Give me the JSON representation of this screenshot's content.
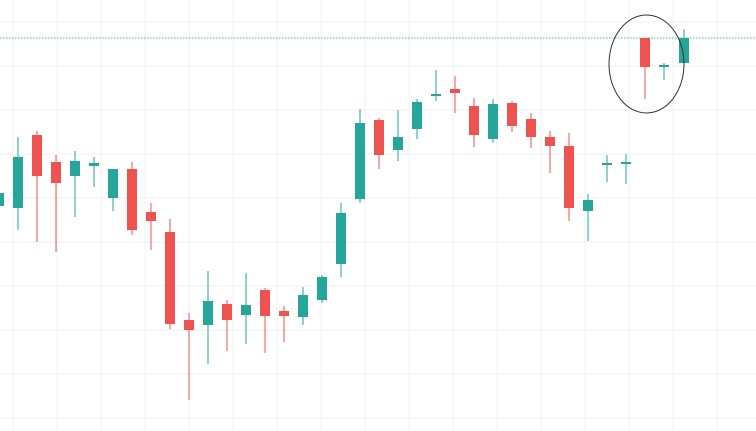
{
  "chart_data": {
    "type": "candlestick",
    "title": "",
    "xlabel": "",
    "ylabel": "",
    "grid": true,
    "ylim": [
      0,
      431
    ],
    "colors": {
      "up": "#26a69a",
      "down": "#ef5350",
      "grid": "#f0f0f3",
      "reference_line": "#26a69a",
      "annotation": "#333333"
    },
    "reference_line": {
      "value": 393
    },
    "annotation": {
      "shape": "ellipse",
      "center_x": 646.5,
      "center_y": 367,
      "rx": 37.5,
      "ry": 49
    },
    "candles": [
      {
        "x": -1,
        "o": 225,
        "h": 238,
        "l": 208,
        "c": 238
      },
      {
        "x": 18,
        "o": 223,
        "h": 294,
        "l": 201,
        "c": 274
      },
      {
        "x": 37,
        "o": 296,
        "h": 300,
        "l": 189,
        "c": 255
      },
      {
        "x": 56,
        "o": 269,
        "h": 276,
        "l": 179,
        "c": 248
      },
      {
        "x": 75,
        "o": 255,
        "h": 280,
        "l": 214,
        "c": 270
      },
      {
        "x": 94,
        "o": 265,
        "h": 274,
        "l": 244,
        "c": 268
      },
      {
        "x": 113,
        "o": 233,
        "h": 262,
        "l": 220,
        "c": 262
      },
      {
        "x": 132,
        "o": 262,
        "h": 269,
        "l": 196,
        "c": 201
      },
      {
        "x": 151,
        "o": 219,
        "h": 228,
        "l": 181,
        "c": 210
      },
      {
        "x": 170,
        "o": 199,
        "h": 212,
        "l": 102,
        "c": 107
      },
      {
        "x": 189,
        "o": 111,
        "h": 118,
        "l": 31,
        "c": 101
      },
      {
        "x": 208,
        "o": 106,
        "h": 160,
        "l": 67,
        "c": 130
      },
      {
        "x": 227,
        "o": 127,
        "h": 131,
        "l": 80,
        "c": 111
      },
      {
        "x": 246,
        "o": 116,
        "h": 158,
        "l": 87,
        "c": 126
      },
      {
        "x": 265,
        "o": 141,
        "h": 143,
        "l": 78,
        "c": 115
      },
      {
        "x": 284,
        "o": 120,
        "h": 125,
        "l": 89,
        "c": 115
      },
      {
        "x": 303,
        "o": 114,
        "h": 144,
        "l": 106,
        "c": 136
      },
      {
        "x": 322,
        "o": 131,
        "h": 156,
        "l": 128,
        "c": 154
      },
      {
        "x": 341,
        "o": 167,
        "h": 228,
        "l": 154,
        "c": 218
      },
      {
        "x": 360,
        "o": 232,
        "h": 322,
        "l": 228,
        "c": 308
      },
      {
        "x": 379,
        "o": 311,
        "h": 313,
        "l": 262,
        "c": 276
      },
      {
        "x": 398,
        "o": 281,
        "h": 321,
        "l": 270,
        "c": 294
      },
      {
        "x": 417,
        "o": 302,
        "h": 332,
        "l": 292,
        "c": 329
      },
      {
        "x": 436,
        "o": 335,
        "h": 361,
        "l": 330,
        "c": 337
      },
      {
        "x": 455,
        "o": 342,
        "h": 355,
        "l": 318,
        "c": 338
      },
      {
        "x": 474,
        "o": 325,
        "h": 333,
        "l": 284,
        "c": 296
      },
      {
        "x": 493,
        "o": 292,
        "h": 332,
        "l": 288,
        "c": 327
      },
      {
        "x": 512,
        "o": 328,
        "h": 330,
        "l": 299,
        "c": 305
      },
      {
        "x": 531,
        "o": 312,
        "h": 318,
        "l": 283,
        "c": 294
      },
      {
        "x": 550,
        "o": 294,
        "h": 300,
        "l": 258,
        "c": 285
      },
      {
        "x": 569,
        "o": 285,
        "h": 298,
        "l": 210,
        "c": 223
      },
      {
        "x": 588,
        "o": 220,
        "h": 237,
        "l": 190,
        "c": 231
      },
      {
        "x": 607,
        "o": 266,
        "h": 276,
        "l": 249,
        "c": 268
      },
      {
        "x": 626,
        "o": 267,
        "h": 277,
        "l": 247,
        "c": 269
      },
      {
        "x": 645,
        "o": 393,
        "h": 393,
        "l": 332,
        "c": 364
      },
      {
        "x": 664,
        "o": 364,
        "h": 368,
        "l": 351,
        "c": 366
      },
      {
        "x": 684,
        "o": 368,
        "h": 402,
        "l": 365,
        "c": 393
      }
    ]
  }
}
